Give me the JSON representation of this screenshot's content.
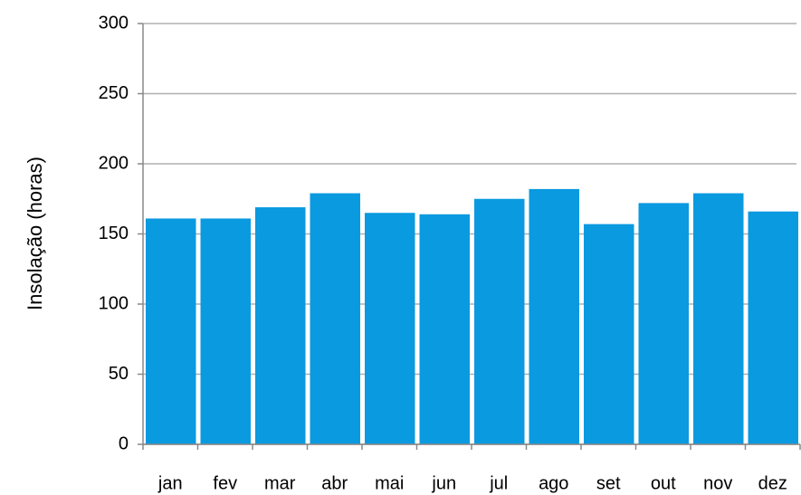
{
  "chart_data": {
    "type": "bar",
    "y_label": "Insolação (horas)",
    "categories": [
      "jan",
      "fev",
      "mar",
      "abr",
      "mai",
      "jun",
      "jul",
      "ago",
      "set",
      "out",
      "nov",
      "dez"
    ],
    "values": [
      161,
      161,
      169,
      179,
      165,
      164,
      175,
      182,
      157,
      172,
      179,
      166
    ],
    "color": "#0a9ae0",
    "ylim": [
      0,
      300
    ],
    "yticks": [
      0,
      50,
      100,
      150,
      200,
      250,
      300
    ],
    "grid": true
  }
}
